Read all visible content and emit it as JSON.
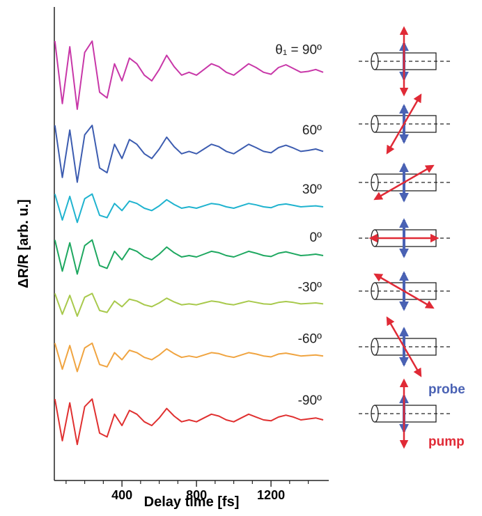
{
  "chart_data": {
    "type": "line",
    "xlabel": "Delay time [fs]",
    "ylabel": "ΔR/R [arb. u.]",
    "x": [
      40,
      80,
      120,
      160,
      200,
      240,
      280,
      320,
      360,
      400,
      440,
      480,
      520,
      560,
      600,
      640,
      680,
      720,
      760,
      800,
      840,
      880,
      920,
      960,
      1000,
      1040,
      1080,
      1120,
      1160,
      1200,
      1240,
      1280,
      1320,
      1360,
      1400,
      1440,
      1480
    ],
    "xlim": [
      37,
      1510
    ],
    "ylim": [
      0,
      100
    ],
    "xticks": [
      400,
      800,
      1200
    ],
    "xminorticks": [
      100,
      200,
      300,
      500,
      600,
      700,
      900,
      1000,
      1100,
      1300,
      1400
    ],
    "series": [
      {
        "name": "θ₁ = 90º",
        "color": "#c837a8",
        "values": [
          92.8,
          79.6,
          91.6,
          78.4,
          90.4,
          92.8,
          82,
          80.8,
          88,
          84.4,
          89.2,
          88,
          85.6,
          84.4,
          86.8,
          89.8,
          87.4,
          85.6,
          86.2,
          85.6,
          86.8,
          88,
          87.4,
          86.2,
          85.6,
          86.8,
          88,
          87.2,
          86.2,
          85.8,
          87.2,
          87.8,
          87,
          86.2,
          86.4,
          86.8,
          86.2
        ]
      },
      {
        "name": "60º",
        "color": "#3c5cb0",
        "values": [
          75,
          64,
          74,
          63,
          73,
          75,
          66,
          65,
          71,
          68,
          72,
          71,
          69,
          68,
          70,
          72.5,
          70.5,
          69,
          69.5,
          69,
          70,
          71,
          70.5,
          69.5,
          69,
          70,
          71,
          70.3,
          69.5,
          69.2,
          70.3,
          70.8,
          70.2,
          69.5,
          69.7,
          70,
          69.5
        ]
      },
      {
        "name": "30º",
        "color": "#1fb3cf",
        "values": [
          60.5,
          55,
          60,
          54.5,
          59.5,
          60.5,
          56,
          55.5,
          58.5,
          57,
          59,
          58.5,
          57.5,
          57,
          58,
          59.3,
          58.3,
          57.5,
          57.8,
          57.5,
          58,
          58.5,
          58.3,
          57.8,
          57.5,
          58,
          58.5,
          58.2,
          57.8,
          57.6,
          58.2,
          58.4,
          58.1,
          57.8,
          57.9,
          58,
          57.8
        ]
      },
      {
        "name": "0º",
        "color": "#1ea860",
        "values": [
          50.8,
          44.2,
          50.2,
          43.6,
          49.6,
          50.8,
          45.4,
          44.8,
          48.4,
          46.6,
          49,
          48.4,
          47.2,
          46.6,
          47.8,
          49.3,
          48.1,
          47.2,
          47.5,
          47.2,
          47.8,
          48.4,
          48.1,
          47.5,
          47.2,
          47.8,
          48.4,
          48,
          47.5,
          47.3,
          48,
          48.3,
          47.9,
          47.5,
          47.6,
          47.8,
          47.5
        ]
      },
      {
        "name": "-30º",
        "color": "#a8c94c",
        "values": [
          39.5,
          35.1,
          39.1,
          34.7,
          38.7,
          39.5,
          35.9,
          35.5,
          37.9,
          36.7,
          38.3,
          37.9,
          37.1,
          36.7,
          37.5,
          38.5,
          37.7,
          37.1,
          37.3,
          37.1,
          37.5,
          37.9,
          37.7,
          37.3,
          37.1,
          37.5,
          37.9,
          37.6,
          37.3,
          37.2,
          37.6,
          37.8,
          37.6,
          37.3,
          37.4,
          37.5,
          37.3
        ]
      },
      {
        "name": "-60º",
        "color": "#f0a440",
        "values": [
          29,
          23.5,
          28.5,
          23,
          28,
          29,
          24.5,
          24,
          27,
          25.5,
          27.5,
          27,
          26,
          25.5,
          26.5,
          27.8,
          26.8,
          26,
          26.3,
          26,
          26.5,
          27,
          26.8,
          26.3,
          26,
          26.5,
          27,
          26.7,
          26.3,
          26.1,
          26.7,
          26.9,
          26.6,
          26.3,
          26.4,
          26.5,
          26.3
        ]
      },
      {
        "name": "-90º",
        "color": "#e03030",
        "values": [
          17.2,
          8.4,
          16.4,
          7.6,
          15.6,
          17.2,
          10,
          9.2,
          14,
          11.6,
          14.8,
          14,
          12.4,
          11.6,
          13.2,
          15.2,
          13.6,
          12.4,
          12.8,
          12.4,
          13.2,
          14,
          13.6,
          12.8,
          12.4,
          13.2,
          14,
          13.4,
          12.8,
          12.6,
          13.4,
          13.8,
          13.4,
          12.8,
          13,
          13.2,
          12.8
        ]
      }
    ],
    "annotations": [
      "probe",
      "pump"
    ]
  }
}
